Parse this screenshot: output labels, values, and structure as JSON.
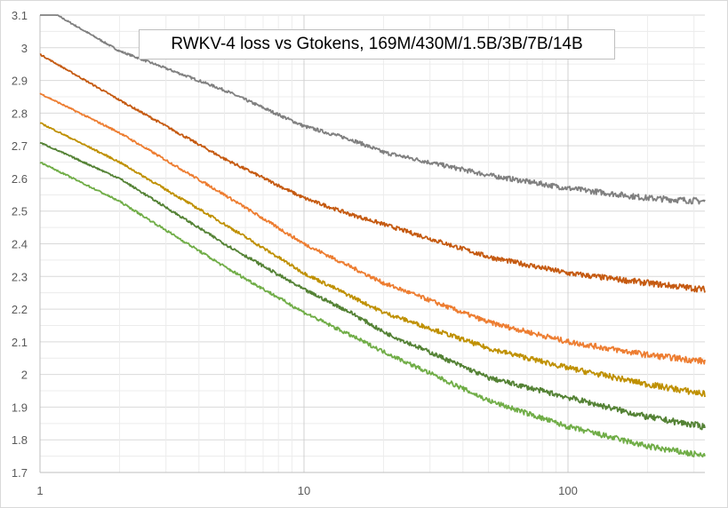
{
  "chart_data": {
    "type": "line",
    "title": "RWKV-4 loss vs Gtokens, 169M/430M/1.5B/3B/7B/14B",
    "xlabel": "",
    "ylabel": "",
    "xscale": "log",
    "xlim": [
      1,
      330
    ],
    "ylim": [
      1.7,
      3.1
    ],
    "grid": true,
    "legend": "none",
    "x_ticks": [
      "1",
      "10",
      "100"
    ],
    "y_ticks": [
      "1.7",
      "1.8",
      "1.9",
      "2",
      "2.1",
      "2.2",
      "2.3",
      "2.4",
      "2.5",
      "2.6",
      "2.7",
      "2.8",
      "2.9",
      "3",
      "3.1"
    ],
    "x": [
      1,
      2,
      5,
      10,
      15,
      20,
      50,
      100,
      200,
      330
    ],
    "series": [
      {
        "color": "#808080",
        "values": [
          3.13,
          2.99,
          2.87,
          2.76,
          2.72,
          2.68,
          2.61,
          2.57,
          2.54,
          2.53
        ]
      },
      {
        "color": "#c55a11",
        "values": [
          2.98,
          2.84,
          2.66,
          2.54,
          2.49,
          2.46,
          2.36,
          2.31,
          2.28,
          2.26
        ]
      },
      {
        "color": "#ed7d31",
        "values": [
          2.86,
          2.74,
          2.55,
          2.4,
          2.33,
          2.28,
          2.16,
          2.1,
          2.06,
          2.04
        ]
      },
      {
        "color": "#bf9000",
        "values": [
          2.77,
          2.65,
          2.46,
          2.31,
          2.24,
          2.19,
          2.08,
          2.02,
          1.97,
          1.94
        ]
      },
      {
        "color": "#548235",
        "values": [
          2.71,
          2.6,
          2.4,
          2.26,
          2.19,
          2.13,
          1.99,
          1.93,
          1.87,
          1.84
        ]
      },
      {
        "color": "#70ad47",
        "values": [
          2.65,
          2.53,
          2.33,
          2.19,
          2.12,
          2.07,
          1.92,
          1.84,
          1.78,
          1.75
        ]
      }
    ]
  }
}
